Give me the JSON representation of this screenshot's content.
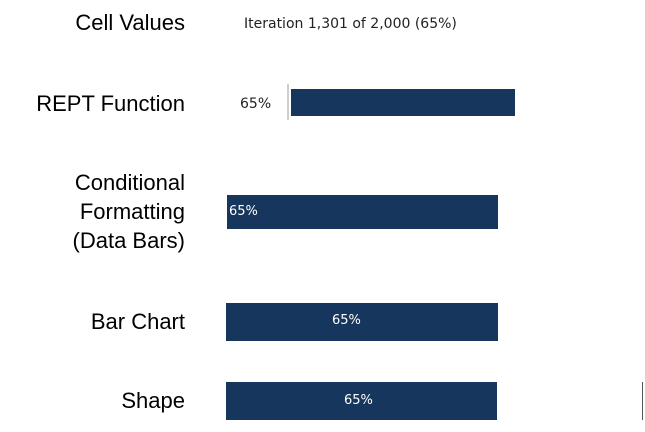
{
  "rows": [
    {
      "label_lines": [
        "Cell Values"
      ],
      "value_text": "Iteration 1,301 of 2,000 (65%)"
    },
    {
      "label_lines": [
        "REPT Function"
      ],
      "value_text": "65%"
    },
    {
      "label_lines": [
        "Conditional",
        "Formatting",
        "(Data Bars)"
      ],
      "value_text": "65%"
    },
    {
      "label_lines": [
        "Bar Chart"
      ],
      "value_text": "65%"
    },
    {
      "label_lines": [
        "Shape"
      ],
      "value_text": "65%"
    }
  ],
  "progress": {
    "current": 1301,
    "total": 2000,
    "percent": 65
  },
  "colors": {
    "bar": "#17365d",
    "text": "#000000",
    "bar_text": "#ffffff",
    "background": "#ffffff"
  }
}
